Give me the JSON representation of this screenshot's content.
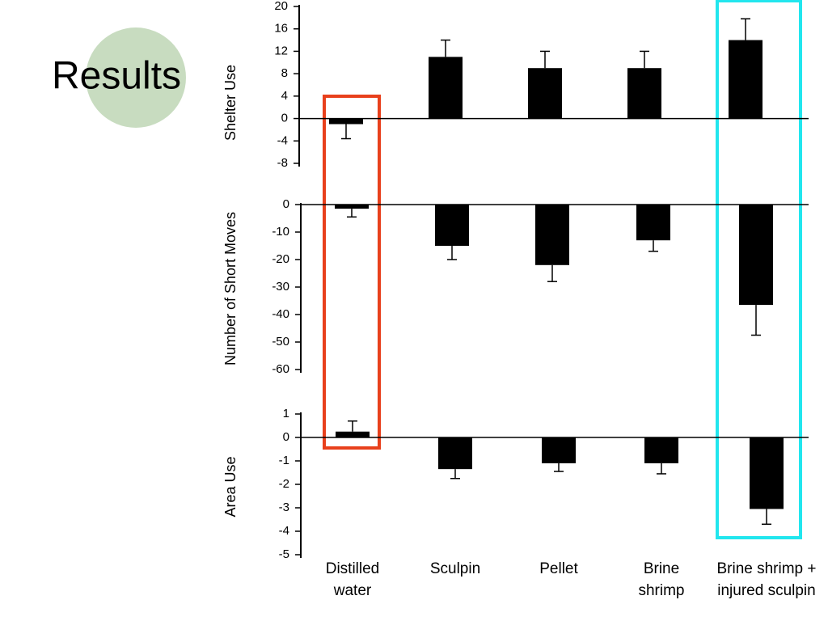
{
  "title": "Results",
  "chart_data": [
    {
      "type": "bar",
      "ylabel": "Shelter Use",
      "values": [
        -1,
        11,
        9,
        9,
        14
      ],
      "errors": [
        2.6,
        3,
        3,
        3,
        3.8
      ],
      "color": "#000000",
      "ylim": [
        -8,
        20
      ],
      "yticks": [
        -8,
        -4,
        0,
        4,
        8,
        12,
        16,
        20
      ]
    },
    {
      "type": "bar",
      "ylabel": "Number of Short Moves",
      "values": [
        -1.5,
        -15,
        -22,
        -13,
        -36.5
      ],
      "errors": [
        3,
        5,
        6,
        4,
        11
      ],
      "color": "#000000",
      "ylim": [
        -60,
        0
      ],
      "yticks": [
        -60,
        -50,
        -40,
        -30,
        -20,
        -10,
        0
      ]
    },
    {
      "type": "bar",
      "ylabel": "Area Use",
      "categories": [
        "Distilled water",
        "Sculpin",
        "Pellet",
        "Brine shrimp",
        "Brine shrimp + injured sculpin"
      ],
      "values": [
        0.25,
        -1.35,
        -1.1,
        -1.1,
        -3.05
      ],
      "errors": [
        0.45,
        0.4,
        0.35,
        0.45,
        0.65
      ],
      "color": "#000000",
      "ylim": [
        -5,
        1
      ],
      "yticks": [
        -5,
        -4,
        -3,
        -2,
        -1,
        0,
        1
      ]
    }
  ]
}
